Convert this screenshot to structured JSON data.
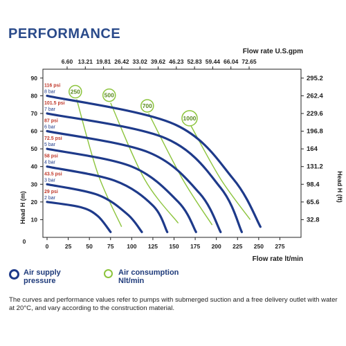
{
  "title": "PERFORMANCE",
  "chart_data": {
    "type": "line",
    "x_top_title": "Flow rate U.S.gpm",
    "x_top_ticks": [
      "6.60",
      "13.21",
      "19.81",
      "26.42",
      "33.02",
      "39.62",
      "46.23",
      "52.83",
      "59.44",
      "66.04",
      "72.65"
    ],
    "x_bottom_ticks": [
      "0",
      "25",
      "50",
      "75",
      "100",
      "125",
      "150",
      "175",
      "200",
      "225",
      "250",
      "275"
    ],
    "xlabel": "Flow rate  lt/min",
    "xlim": [
      0,
      300
    ],
    "y_left_ticks": [
      "0",
      "10",
      "20",
      "30",
      "40",
      "50",
      "60",
      "70",
      "80",
      "90"
    ],
    "ylabel": "Head H (m)",
    "ylim": [
      0,
      95
    ],
    "y_right_ticks": [
      "32.8",
      "65.6",
      "98.4",
      "131.2",
      "164",
      "196.8",
      "229.6",
      "262.4",
      "295.2"
    ],
    "ylabel_right": "Head H (ft)",
    "pressure_series": [
      {
        "psi": "29 psi",
        "bar": "2 bar",
        "points": [
          [
            0,
            20
          ],
          [
            40,
            17
          ],
          [
            60,
            12
          ],
          [
            75,
            3
          ]
        ]
      },
      {
        "psi": "43.5 psi",
        "bar": "3 bar",
        "points": [
          [
            0,
            30
          ],
          [
            60,
            24
          ],
          [
            95,
            13
          ],
          [
            112,
            3
          ]
        ]
      },
      {
        "psi": "58 psi",
        "bar": "4 bar",
        "points": [
          [
            0,
            40
          ],
          [
            80,
            32
          ],
          [
            125,
            18
          ],
          [
            142,
            3
          ]
        ]
      },
      {
        "psi": "72.5 psi",
        "bar": "5 bar",
        "points": [
          [
            0,
            50
          ],
          [
            100,
            40
          ],
          [
            155,
            20
          ],
          [
            176,
            3
          ]
        ]
      },
      {
        "psi": "87 psi",
        "bar": "6 bar",
        "points": [
          [
            0,
            60
          ],
          [
            120,
            48
          ],
          [
            180,
            25
          ],
          [
            205,
            3
          ]
        ]
      },
      {
        "psi": "101.5 psi",
        "bar": "7 bar",
        "points": [
          [
            0,
            70
          ],
          [
            140,
            56
          ],
          [
            205,
            28
          ],
          [
            230,
            3
          ]
        ]
      },
      {
        "psi": "116 psi",
        "bar": "8 bar",
        "points": [
          [
            0,
            80
          ],
          [
            150,
            64
          ],
          [
            220,
            33
          ],
          [
            252,
            6
          ]
        ]
      }
    ],
    "consumption_series": [
      {
        "label": "250",
        "points": [
          [
            35,
            78
          ],
          [
            60,
            36
          ],
          [
            88,
            6
          ]
        ]
      },
      {
        "label": "500",
        "points": [
          [
            75,
            76
          ],
          [
            115,
            33
          ],
          [
            155,
            8
          ]
        ]
      },
      {
        "label": "700",
        "points": [
          [
            120,
            70
          ],
          [
            160,
            33
          ],
          [
            195,
            7
          ]
        ]
      },
      {
        "label": "1000",
        "points": [
          [
            170,
            63
          ],
          [
            205,
            33
          ],
          [
            240,
            10
          ]
        ]
      }
    ],
    "colors": {
      "pressure": "#1e3a8a",
      "consumption": "#8cc43c",
      "psi_label": "#c0392b",
      "bar_label": "#1e3a8a"
    },
    "grid": false,
    "legend_position": "bottom-left"
  },
  "legend": {
    "air_supply": "Air supply\npressure",
    "air_consumption": "Air consumption\nNlt/min"
  },
  "footnote": "The curves and performance values refer to pumps with submerged suction and a free delivery outlet with water at 20°C, and vary according to the construction material."
}
